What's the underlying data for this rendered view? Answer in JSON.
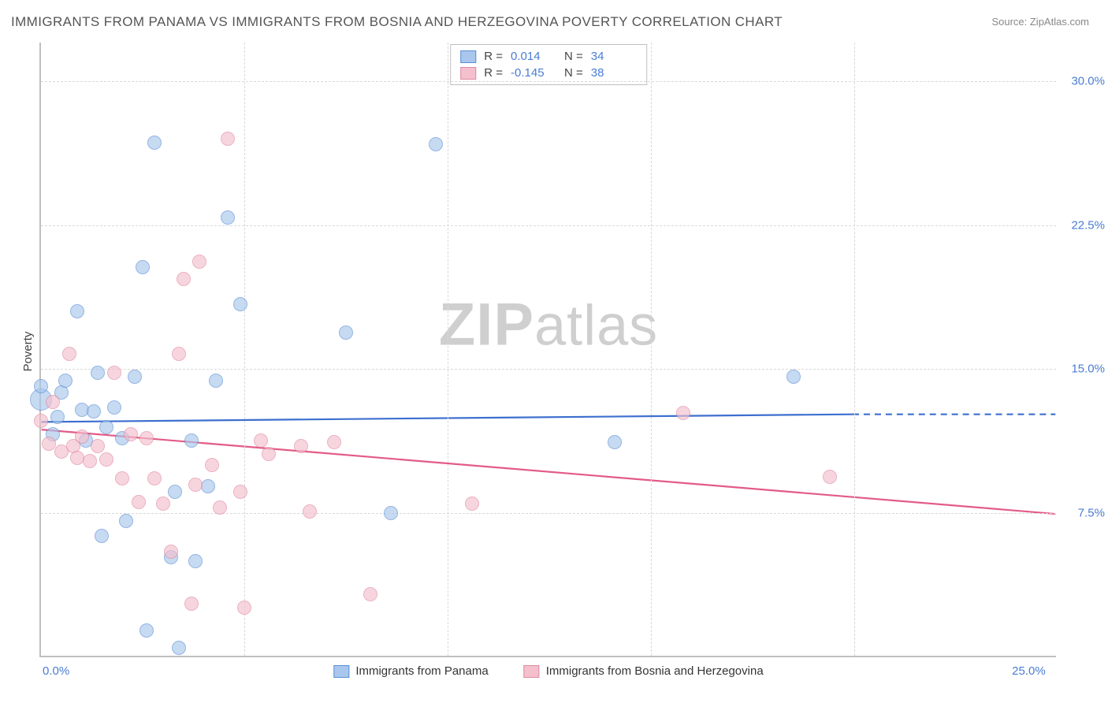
{
  "title": "IMMIGRANTS FROM PANAMA VS IMMIGRANTS FROM BOSNIA AND HERZEGOVINA POVERTY CORRELATION CHART",
  "source_label": "Source: ZipAtlas.com",
  "watermark_zip": "ZIP",
  "watermark_atlas": "atlas",
  "chart": {
    "type": "scatter",
    "ylabel": "Poverty",
    "background_color": "#ffffff",
    "grid_color": "#d9d9d9",
    "axis_color": "#bfbfbf",
    "tick_color": "#4a7dd4",
    "xlim": [
      0,
      25
    ],
    "ylim": [
      0,
      32
    ],
    "y_ticks": [
      {
        "value": 7.5,
        "label": "7.5%"
      },
      {
        "value": 15.0,
        "label": "15.0%"
      },
      {
        "value": 22.5,
        "label": "22.5%"
      },
      {
        "value": 30.0,
        "label": "30.0%"
      }
    ],
    "x_ticks_minor": [
      5,
      10,
      15,
      20
    ],
    "x_tick_left": {
      "value": 0,
      "label": "0.0%"
    },
    "x_tick_right": {
      "value": 25,
      "label": "25.0%"
    },
    "series": [
      {
        "id": "panama",
        "label": "Immigrants from Panama",
        "fill_color": "#a9c7ec",
        "stroke_color": "#5b8fd6",
        "line_color": "#3c6fcf",
        "marker_radius": 9,
        "marker_opacity": 0.65,
        "stats": {
          "R_label": "R =",
          "R": "0.014",
          "N_label": "N =",
          "N": "34"
        },
        "regression": {
          "x1": 0,
          "y1": 12.2,
          "x2": 20.0,
          "y2": 12.6,
          "dash_from_x": 20.0,
          "dash_to_x": 25.0,
          "dash_y": 12.6
        },
        "points": [
          {
            "x": 0.0,
            "y": 13.4,
            "r": 14
          },
          {
            "x": 0.0,
            "y": 14.1
          },
          {
            "x": 0.3,
            "y": 11.6
          },
          {
            "x": 0.4,
            "y": 12.5
          },
          {
            "x": 0.5,
            "y": 13.8
          },
          {
            "x": 0.6,
            "y": 14.4
          },
          {
            "x": 0.9,
            "y": 18.0
          },
          {
            "x": 1.0,
            "y": 12.9
          },
          {
            "x": 1.1,
            "y": 11.3
          },
          {
            "x": 1.3,
            "y": 12.8
          },
          {
            "x": 1.4,
            "y": 14.8
          },
          {
            "x": 1.5,
            "y": 6.3
          },
          {
            "x": 1.6,
            "y": 12.0
          },
          {
            "x": 1.8,
            "y": 13.0
          },
          {
            "x": 2.0,
            "y": 11.4
          },
          {
            "x": 2.1,
            "y": 7.1
          },
          {
            "x": 2.3,
            "y": 14.6
          },
          {
            "x": 2.5,
            "y": 20.3
          },
          {
            "x": 2.6,
            "y": 1.4
          },
          {
            "x": 2.8,
            "y": 26.8
          },
          {
            "x": 3.2,
            "y": 5.2
          },
          {
            "x": 3.3,
            "y": 8.6
          },
          {
            "x": 3.4,
            "y": 0.5
          },
          {
            "x": 3.7,
            "y": 11.3
          },
          {
            "x": 3.8,
            "y": 5.0
          },
          {
            "x": 4.1,
            "y": 8.9
          },
          {
            "x": 4.3,
            "y": 14.4
          },
          {
            "x": 4.6,
            "y": 22.9
          },
          {
            "x": 4.9,
            "y": 18.4
          },
          {
            "x": 7.5,
            "y": 16.9
          },
          {
            "x": 8.6,
            "y": 7.5
          },
          {
            "x": 9.7,
            "y": 26.7
          },
          {
            "x": 14.1,
            "y": 11.2
          },
          {
            "x": 18.5,
            "y": 14.6
          }
        ]
      },
      {
        "id": "bosnia",
        "label": "Immigrants from Bosnia and Herzegovina",
        "fill_color": "#f4c0ce",
        "stroke_color": "#e088a1",
        "line_color": "#e35b86",
        "marker_radius": 9,
        "marker_opacity": 0.65,
        "stats": {
          "R_label": "R =",
          "R": "-0.145",
          "N_label": "N =",
          "N": "38"
        },
        "regression": {
          "x1": 0,
          "y1": 11.8,
          "x2": 25.0,
          "y2": 7.4,
          "dash_from_x": null
        },
        "points": [
          {
            "x": 0.0,
            "y": 12.3
          },
          {
            "x": 0.2,
            "y": 11.1
          },
          {
            "x": 0.3,
            "y": 13.3
          },
          {
            "x": 0.5,
            "y": 10.7
          },
          {
            "x": 0.7,
            "y": 15.8
          },
          {
            "x": 0.8,
            "y": 11.0
          },
          {
            "x": 0.9,
            "y": 10.4
          },
          {
            "x": 1.0,
            "y": 11.5
          },
          {
            "x": 1.2,
            "y": 10.2
          },
          {
            "x": 1.4,
            "y": 11.0
          },
          {
            "x": 1.6,
            "y": 10.3
          },
          {
            "x": 1.8,
            "y": 14.8
          },
          {
            "x": 2.0,
            "y": 9.3
          },
          {
            "x": 2.2,
            "y": 11.6
          },
          {
            "x": 2.4,
            "y": 8.1
          },
          {
            "x": 2.6,
            "y": 11.4
          },
          {
            "x": 2.8,
            "y": 9.3
          },
          {
            "x": 3.0,
            "y": 8.0
          },
          {
            "x": 3.2,
            "y": 5.5
          },
          {
            "x": 3.4,
            "y": 15.8
          },
          {
            "x": 3.5,
            "y": 19.7
          },
          {
            "x": 3.7,
            "y": 2.8
          },
          {
            "x": 3.8,
            "y": 9.0
          },
          {
            "x": 3.9,
            "y": 20.6
          },
          {
            "x": 4.2,
            "y": 10.0
          },
          {
            "x": 4.4,
            "y": 7.8
          },
          {
            "x": 4.6,
            "y": 27.0
          },
          {
            "x": 4.9,
            "y": 8.6
          },
          {
            "x": 5.0,
            "y": 2.6
          },
          {
            "x": 5.4,
            "y": 11.3
          },
          {
            "x": 5.6,
            "y": 10.6
          },
          {
            "x": 6.4,
            "y": 11.0
          },
          {
            "x": 6.6,
            "y": 7.6
          },
          {
            "x": 7.2,
            "y": 11.2
          },
          {
            "x": 8.1,
            "y": 3.3
          },
          {
            "x": 10.6,
            "y": 8.0
          },
          {
            "x": 15.8,
            "y": 12.7
          },
          {
            "x": 19.4,
            "y": 9.4
          }
        ]
      }
    ]
  }
}
